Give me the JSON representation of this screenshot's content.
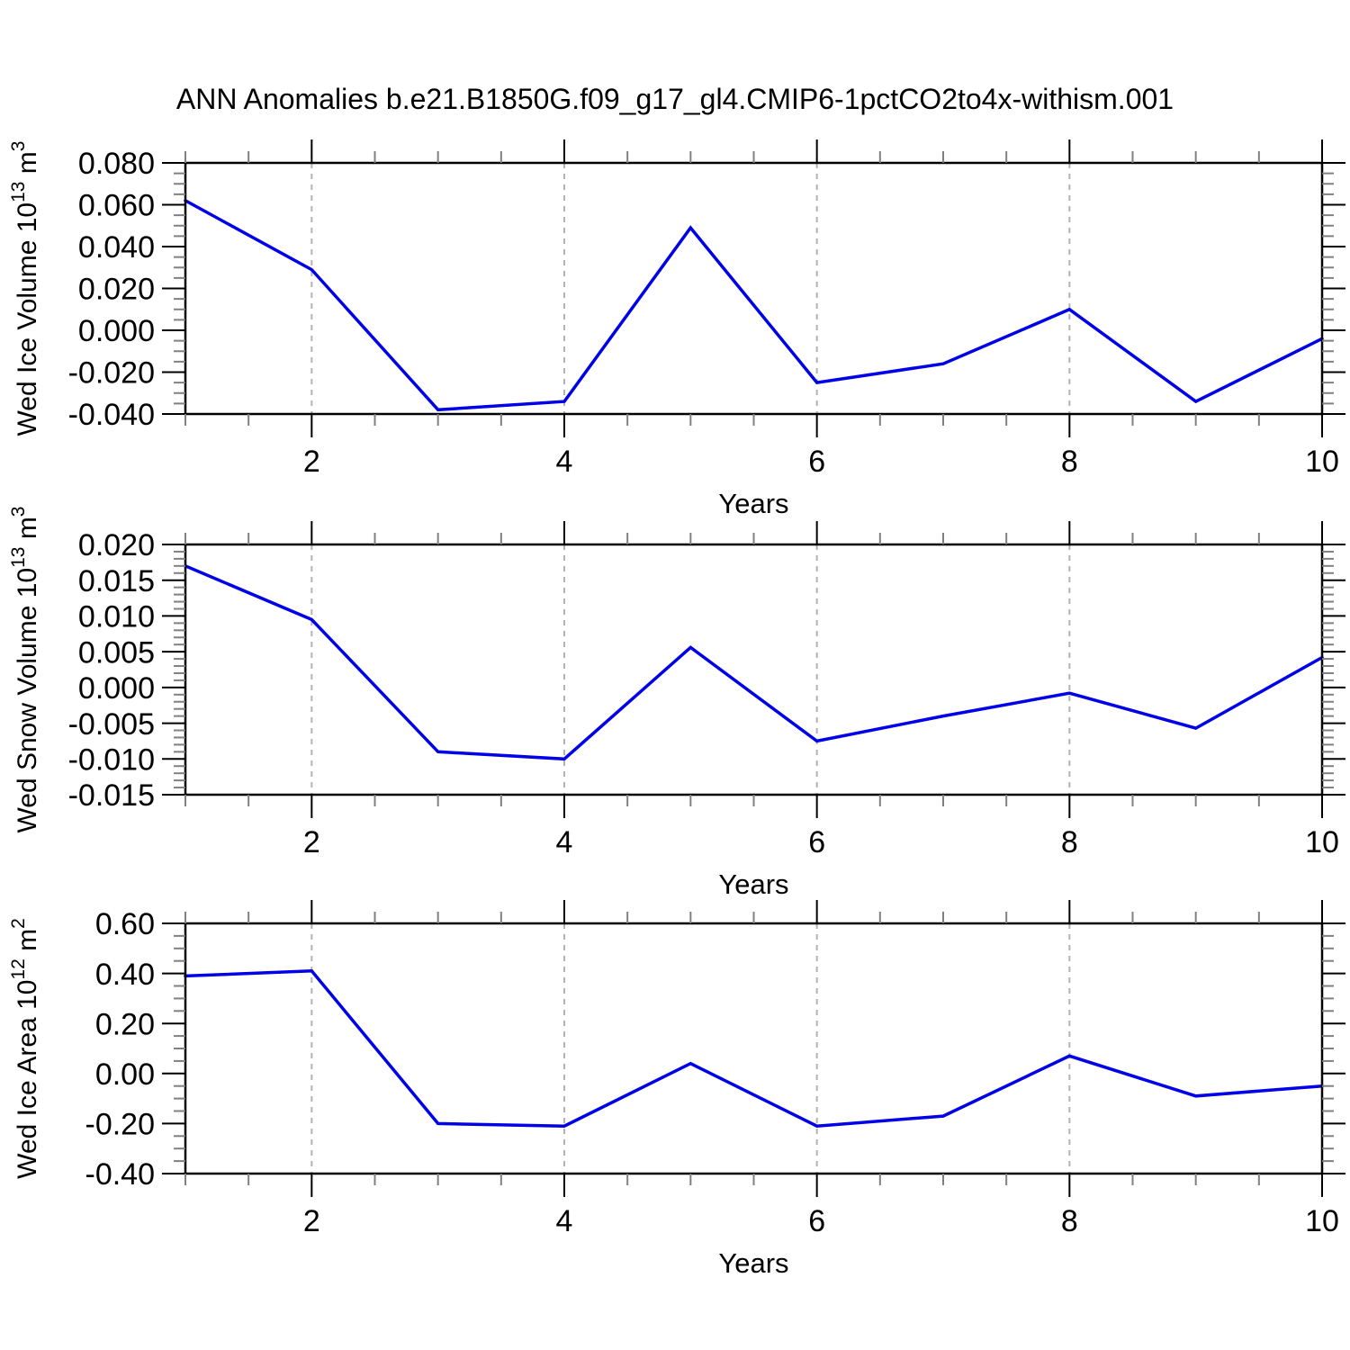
{
  "title": "ANN Anomalies b.e21.B1850G.f09_g17_gl4.CMIP6-1pctCO2to4x-withism.001",
  "colors": {
    "line": "#0000e8",
    "grid": "#b3b3b3",
    "axis": "#000000",
    "minor_tick": "#808080",
    "background": "#ffffff"
  },
  "chart_data": [
    {
      "type": "line",
      "xlabel": "Years",
      "ylabel": {
        "text": "Wed Ice Volume",
        "base": "10",
        "exp": "13",
        "unit": "m",
        "unit_exp": "3"
      },
      "x": [
        1,
        2,
        3,
        4,
        5,
        6,
        7,
        8,
        9,
        10
      ],
      "values": [
        0.062,
        0.029,
        -0.038,
        -0.034,
        0.049,
        -0.025,
        -0.016,
        0.01,
        -0.034,
        -0.004
      ],
      "xlim": [
        1,
        10
      ],
      "ylim": [
        -0.04,
        0.08
      ],
      "ytick_values": [
        0.08,
        0.06,
        0.04,
        0.02,
        0.0,
        -0.02,
        -0.04
      ],
      "ytick_labels": [
        "0.080",
        "0.060",
        "0.040",
        "0.020",
        "0.000",
        "-0.020",
        "-0.040"
      ],
      "ytick_minor_step": 0.005,
      "xtick_values": [
        2,
        4,
        6,
        8,
        10
      ],
      "xtick_labels": [
        "2",
        "4",
        "6",
        "8",
        "10"
      ],
      "xtick_minor_step": 0.5,
      "grid_x": [
        2,
        4,
        6,
        8
      ],
      "grid_style": "dashed",
      "legend": null
    },
    {
      "type": "line",
      "xlabel": "Years",
      "ylabel": {
        "text": "Wed Snow Volume",
        "base": "10",
        "exp": "13",
        "unit": "m",
        "unit_exp": "3"
      },
      "x": [
        1,
        2,
        3,
        4,
        5,
        6,
        7,
        8,
        9,
        10
      ],
      "values": [
        0.017,
        0.0095,
        -0.009,
        -0.01,
        0.0056,
        -0.0075,
        -0.004,
        -0.0008,
        -0.0057,
        0.0042
      ],
      "xlim": [
        1,
        10
      ],
      "ylim": [
        -0.015,
        0.02
      ],
      "ytick_values": [
        0.02,
        0.015,
        0.01,
        0.005,
        0.0,
        -0.005,
        -0.01,
        -0.015
      ],
      "ytick_labels": [
        "0.020",
        "0.015",
        "0.010",
        "0.005",
        "0.000",
        "-0.005",
        "-0.010",
        "-0.015"
      ],
      "ytick_minor_step": 0.001,
      "xtick_values": [
        2,
        4,
        6,
        8,
        10
      ],
      "xtick_labels": [
        "2",
        "4",
        "6",
        "8",
        "10"
      ],
      "xtick_minor_step": 0.5,
      "grid_x": [
        2,
        4,
        6,
        8
      ],
      "grid_style": "dashed",
      "legend": null
    },
    {
      "type": "line",
      "xlabel": "Years",
      "ylabel": {
        "text": "Wed Ice Area",
        "base": "10",
        "exp": "12",
        "unit": "m",
        "unit_exp": "2"
      },
      "x": [
        1,
        2,
        3,
        4,
        5,
        6,
        7,
        8,
        9,
        10
      ],
      "values": [
        0.39,
        0.41,
        -0.2,
        -0.21,
        0.04,
        -0.21,
        -0.17,
        0.07,
        -0.09,
        -0.05
      ],
      "xlim": [
        1,
        10
      ],
      "ylim": [
        -0.4,
        0.6
      ],
      "ytick_values": [
        0.6,
        0.4,
        0.2,
        0.0,
        -0.2,
        -0.4
      ],
      "ytick_labels": [
        "0.60",
        "0.40",
        "0.20",
        "0.00",
        "-0.20",
        "-0.40"
      ],
      "ytick_minor_step": 0.05,
      "xtick_values": [
        2,
        4,
        6,
        8,
        10
      ],
      "xtick_labels": [
        "2",
        "4",
        "6",
        "8",
        "10"
      ],
      "xtick_minor_step": 0.5,
      "grid_x": [
        2,
        4,
        6,
        8
      ],
      "grid_style": "dashed",
      "legend": null
    }
  ]
}
